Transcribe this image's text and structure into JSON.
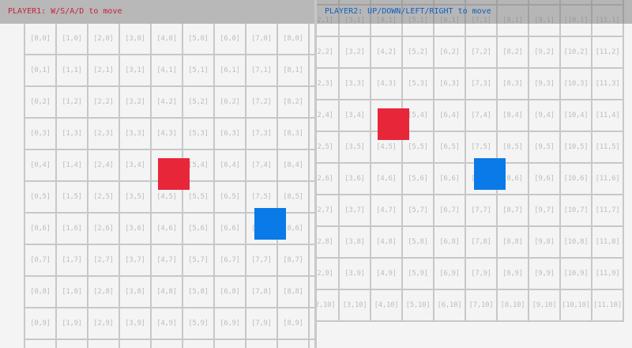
{
  "players": [
    {
      "id": "player1",
      "hud_text": "PLAYER1: W/S/A/D to move",
      "color": "#e8263a",
      "hud_color": "#c8203a",
      "cell_x": 4.2,
      "cell_y": 4.25
    },
    {
      "id": "player2",
      "hud_text": "PLAYER2: UP/DOWN/LEFT/RIGHT to move",
      "color": "#0a7ae8",
      "hud_color": "#1060c0",
      "cell_x": 7.25,
      "cell_y": 5.825
    }
  ],
  "grid": {
    "columns": 12,
    "rows": 11,
    "label_format": "[x,y]"
  }
}
